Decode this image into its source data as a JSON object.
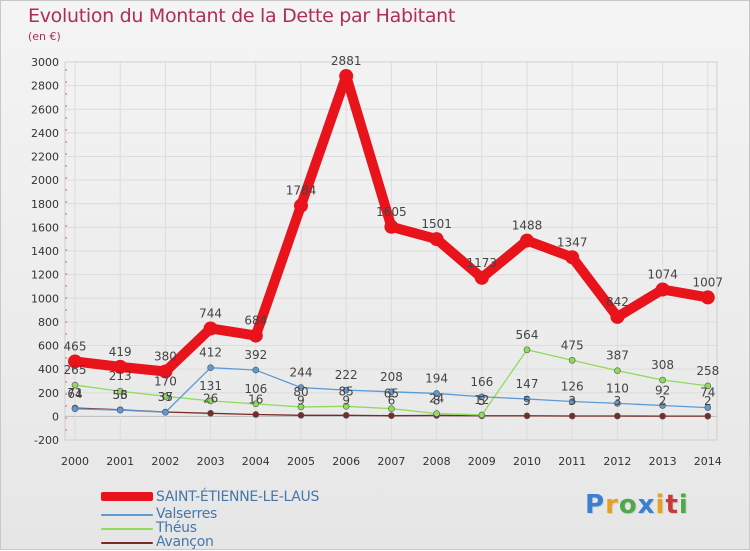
{
  "header": {
    "title": "Evolution du Montant de la Dette par Habitant",
    "subtitle": "(en €)"
  },
  "logo": {
    "text": "Proxiti",
    "colors": [
      "#3a7fd0",
      "#e8a020",
      "#4fa84a",
      "#3a7fd0",
      "#e8a020",
      "#c83a3a",
      "#4fa84a"
    ]
  },
  "chart_data": {
    "type": "line",
    "title": "Evolution du Montant de la Dette par Habitant",
    "ylabel": "(en €)",
    "xlabel": "",
    "x": [
      "2000",
      "2001",
      "2002",
      "2003",
      "2004",
      "2005",
      "2006",
      "2007",
      "2008",
      "2009",
      "2010",
      "2011",
      "2012",
      "2013",
      "2014"
    ],
    "ylim": [
      -200,
      3000
    ],
    "yticks": [
      -200,
      0,
      200,
      400,
      600,
      800,
      1000,
      1200,
      1400,
      1600,
      1800,
      2000,
      2200,
      2400,
      2600,
      2800,
      3000
    ],
    "grid": true,
    "legend_position": "bottom-left",
    "series": [
      {
        "name": "SAINT-ÉTIENNE-LE-LAUS",
        "color": "#e8131b",
        "values": [
          465,
          419,
          380,
          744,
          684,
          1784,
          2881,
          1605,
          1501,
          1173,
          1488,
          1347,
          842,
          1074,
          1007
        ],
        "labels": [
          "465",
          "419",
          "380",
          "744",
          "684",
          "1784",
          "2881",
          "1605",
          "1501",
          "1173",
          "1488",
          "1347",
          "842",
          "1074",
          "1007"
        ]
      },
      {
        "name": "Valserres",
        "color": "#5b9bd5",
        "values": [
          64,
          53,
          35,
          412,
          392,
          244,
          222,
          208,
          194,
          166,
          147,
          126,
          110,
          92,
          74
        ],
        "labels": [
          "64",
          "53",
          "35",
          "412",
          "392",
          "244",
          "222",
          "208",
          "194",
          "166",
          "147",
          "126",
          "110",
          "92",
          "74"
        ]
      },
      {
        "name": "Théus",
        "color": "#8fdb5a",
        "values": [
          265,
          213,
          170,
          131,
          106,
          80,
          85,
          65,
          24,
          12,
          564,
          475,
          387,
          308,
          258
        ],
        "labels": [
          "265",
          "213",
          "170",
          "131",
          "106",
          "80",
          "85",
          "65",
          "24",
          "12",
          "564",
          "475",
          "387",
          "308",
          "258"
        ]
      },
      {
        "name": "Avançon",
        "color": "#7a2a2a",
        "values": [
          71,
          56,
          37,
          26,
          16,
          9,
          9,
          6,
          8,
          5,
          5,
          3,
          3,
          2,
          2
        ],
        "labels": [
          "71",
          "56",
          "37",
          "26",
          "16",
          "9",
          "9",
          "6",
          "8",
          "5",
          "5",
          "3",
          "3",
          "2",
          "2"
        ]
      }
    ]
  }
}
